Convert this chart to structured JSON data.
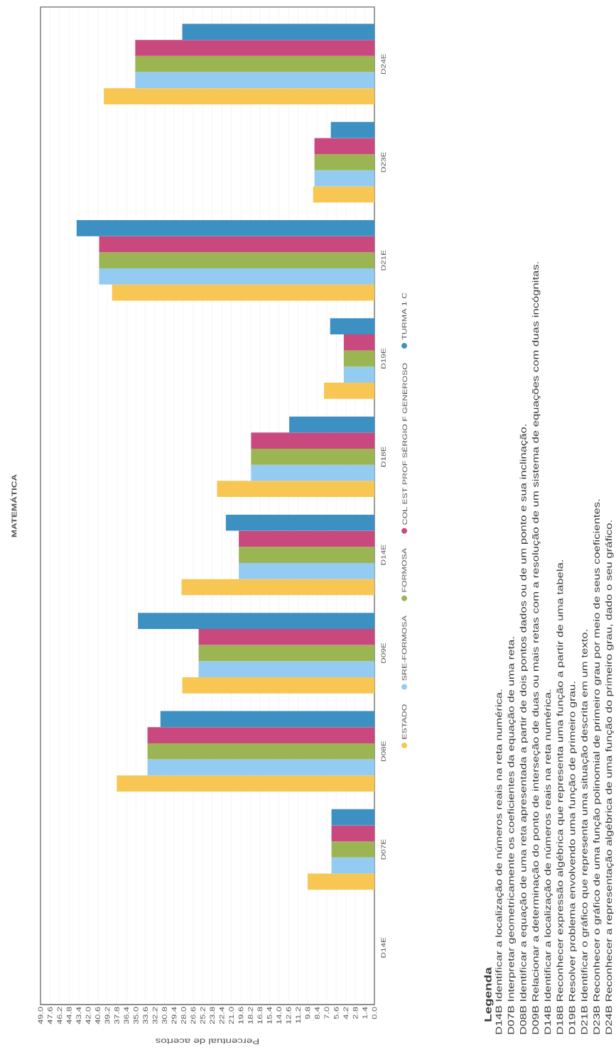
{
  "chart_data": {
    "type": "bar",
    "orientation": "horizontal",
    "title": "MATEMÁTICA",
    "xlabel": "Percentual de acertos",
    "categories": [
      "D24E",
      "D23E",
      "D21E",
      "D19E",
      "D18E",
      "D14E",
      "D09E",
      "D08E",
      "D07E",
      "D14E"
    ],
    "series": [
      {
        "name": "ESTADO",
        "color": "#f8c652",
        "values": [
          39.7,
          9.0,
          38.5,
          7.4,
          23.1,
          28.3,
          28.2,
          37.8,
          9.8,
          null
        ]
      },
      {
        "name": "SRE-FORMOSA",
        "color": "#93cbf1",
        "values": [
          35.1,
          8.8,
          40.4,
          4.5,
          18.1,
          19.9,
          25.8,
          33.3,
          6.3,
          null
        ]
      },
      {
        "name": "FORMOSA",
        "color": "#9ab552",
        "values": [
          35.1,
          8.8,
          40.4,
          4.5,
          18.1,
          19.9,
          25.8,
          33.3,
          6.3,
          null
        ]
      },
      {
        "name": "COL EST PROF SÉRGIO F GENEROSO",
        "color": "#c9497f",
        "values": [
          35.1,
          8.8,
          40.4,
          4.5,
          18.1,
          19.9,
          25.8,
          33.3,
          6.3,
          null
        ]
      },
      {
        "name": "TURMA 1 C",
        "color": "#3c91c2",
        "values": [
          28.2,
          6.4,
          43.7,
          6.5,
          12.5,
          21.8,
          34.7,
          31.4,
          6.3,
          null
        ]
      }
    ],
    "xlim": [
      49,
      0
    ],
    "xticks": [
      {
        "value": 0,
        "label": "0.0"
      },
      1.4,
      2.8,
      4.2,
      5.6,
      {
        "value": 7,
        "label": "7.0"
      },
      8.4,
      9.8,
      11.2,
      12.6,
      {
        "value": 14,
        "label": "14.0"
      },
      15.4,
      16.8,
      18.2,
      19.6,
      {
        "value": 21,
        "label": "21.0"
      },
      22.4,
      23.8,
      25.2,
      26.6,
      {
        "value": 28,
        "label": "28.0"
      },
      29.4,
      30.8,
      32.2,
      33.6,
      {
        "value": 35,
        "label": "35.0"
      },
      36.4,
      37.8,
      39.2,
      40.6,
      {
        "value": 42,
        "label": "42.0"
      },
      43.4,
      44.8,
      46.2,
      47.6,
      {
        "value": 49,
        "label": "49.0"
      }
    ],
    "grid": "x",
    "legend": "right",
    "annotations": [
      "Legenda",
      "D14B Identificar a localização de números reais na reta numérica.",
      "D07B Interpretar geometricamente os coeficientes da equação de uma reta.",
      "D08B Identificar a equação de uma reta apresentada a partir de dois pontos dados ou de um ponto e sua inclinação.",
      "D09B Relacionar a determinação do ponto de interseção de duas ou mais retas com a resolução de um sistema de equações com duas incógnitas.",
      "D14B Identificar a localização de números reais na reta numérica.",
      "D18B Reconhecer expressão algébrica que representa uma função a partir de uma tabela.",
      "D19B Resolver problema envolvendo uma função de primeiro grau.",
      "D21B Identificar o gráfico que representa uma situação descrita em um texto.",
      "D23B Reconhecer o gráfico de uma função polinomial de primeiro grau por meio de seus coeficientes.",
      "D24B Reconhecer a representação algébrica de uma função do primeiro grau, dado o seu gráfico."
    ]
  }
}
